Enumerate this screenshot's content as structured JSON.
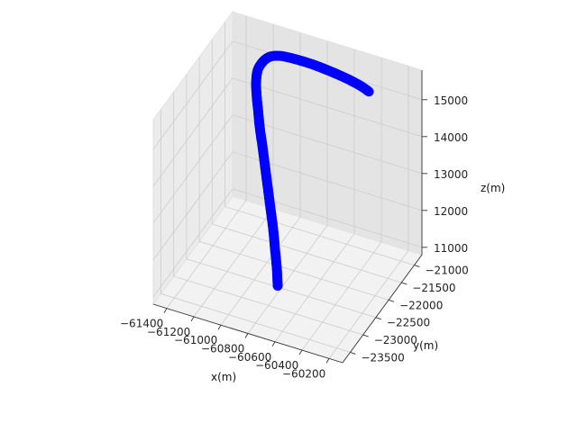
{
  "chart_data": {
    "type": "scatter",
    "projection": "3d",
    "title": "",
    "xlabel": "x(m)",
    "ylabel": "y(m)",
    "zlabel": "z(m)",
    "grid": true,
    "marker_color": "#0000ff",
    "xlim": [
      -61500,
      -60100
    ],
    "ylim": [
      -23800,
      -20700
    ],
    "zlim": [
      10800,
      15800
    ],
    "x_ticks": [
      -61400,
      -61200,
      -61000,
      -60800,
      -60600,
      -60400,
      -60200
    ],
    "y_ticks": [
      -23500,
      -23000,
      -22500,
      -22000,
      -21500,
      -21000
    ],
    "z_ticks": [
      11000,
      12000,
      13000,
      14000,
      15000
    ],
    "x_tick_labels": [
      "−61400",
      "−61200",
      "−61000",
      "−60800",
      "−60600",
      "−60400",
      "−60200"
    ],
    "y_tick_labels": [
      "−23500",
      "−23000",
      "−22500",
      "−22000",
      "−21500",
      "−21000"
    ],
    "z_tick_labels": [
      "11000",
      "12000",
      "13000",
      "14000",
      "15000"
    ],
    "series": [
      {
        "x": [
          -60750,
          -60780,
          -60820,
          -60860,
          -60910,
          -60960,
          -61010,
          -61060,
          -61110,
          -61150,
          -61190,
          -61220,
          -61230,
          -61210,
          -61170,
          -61100,
          -61000,
          -60880,
          -60760,
          -60640,
          -60540,
          -60460,
          -60400
        ],
        "y": [
          -22900,
          -22780,
          -22640,
          -22500,
          -22340,
          -22180,
          -22020,
          -21860,
          -21700,
          -21550,
          -21400,
          -21260,
          -21140,
          -21040,
          -20980,
          -20960,
          -20970,
          -20990,
          -21020,
          -21060,
          -21100,
          -21140,
          -21180
        ],
        "z": [
          11300,
          11650,
          12000,
          12350,
          12700,
          13050,
          13400,
          13750,
          14050,
          14300,
          14550,
          14750,
          14950,
          15100,
          15220,
          15300,
          15350,
          15380,
          15390,
          15390,
          15380,
          15360,
          15330
        ]
      }
    ]
  }
}
